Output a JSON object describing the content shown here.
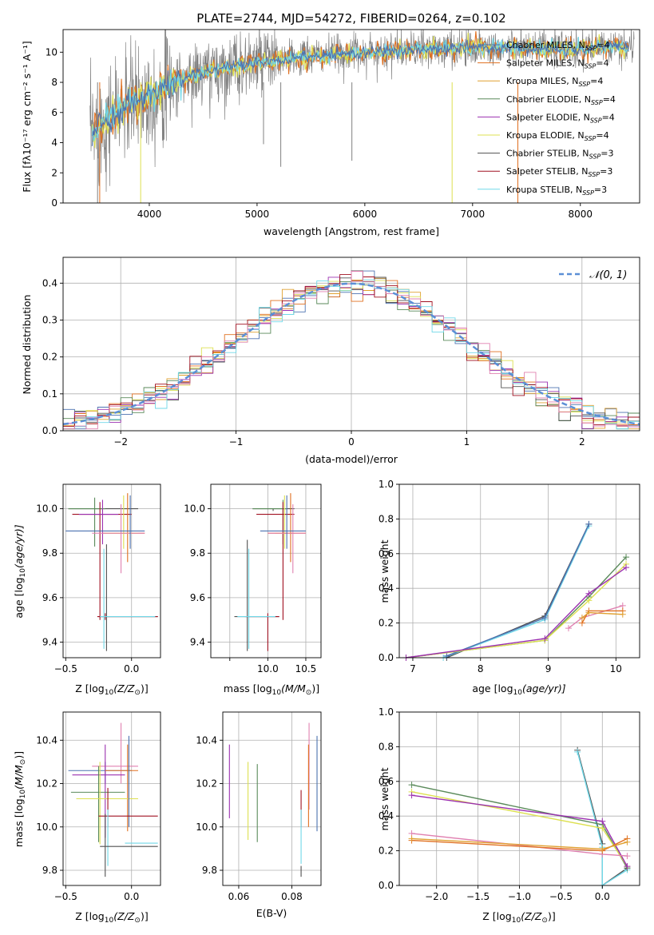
{
  "title": "PLATE=2744, MJD=54272, FIBERID=0264, z=0.102",
  "colors": {
    "chabrier_miles": "#4c72b0",
    "salpeter_miles": "#e07020",
    "kroupa_miles": "#e0a030",
    "chabrier_elodie": "#5a8a5a",
    "salpeter_elodie": "#9b30b0",
    "kroupa_elodie": "#dde050",
    "chabrier_stelib": "#505050",
    "salpeter_stelib": "#a01020",
    "kroupa_stelib": "#70d8e8",
    "pink": "#e080b0",
    "gaussian": "#5b8fd6"
  },
  "legend": [
    {
      "label": "Chabrier MILES, N",
      "sub": "SSP",
      "tail": "=4",
      "color": "#4c72b0"
    },
    {
      "label": "Salpeter MILES, N",
      "sub": "SSP",
      "tail": "=4",
      "color": "#e07020"
    },
    {
      "label": "Kroupa MILES, N",
      "sub": "SSP",
      "tail": "=4",
      "color": "#e0a030"
    },
    {
      "label": "Chabrier ELODIE, N",
      "sub": "SSP",
      "tail": "=4",
      "color": "#5a8a5a"
    },
    {
      "label": "Salpeter ELODIE, N",
      "sub": "SSP",
      "tail": "=4",
      "color": "#9b30b0"
    },
    {
      "label": "Kroupa ELODIE, N",
      "sub": "SSP",
      "tail": "=4",
      "color": "#dde050"
    },
    {
      "label": "Chabrier STELIB, N",
      "sub": "SSP",
      "tail": "=3",
      "color": "#505050"
    },
    {
      "label": "Salpeter STELIB, N",
      "sub": "SSP",
      "tail": "=3",
      "color": "#a01020"
    },
    {
      "label": "Kroupa STELIB, N",
      "sub": "SSP",
      "tail": "=3",
      "color": "#70d8e8"
    }
  ],
  "chart_data": [
    {
      "type": "line",
      "name_hint": "spectrum",
      "xlabel": "wavelength [Angstrom, rest frame]",
      "ylabel_parts": [
        "Flux [f",
        "λ",
        "10",
        "−17",
        " erg cm",
        "−2",
        " s",
        "−1",
        " A",
        "−1",
        "]"
      ],
      "xlim": [
        3200,
        8550
      ],
      "ylim": [
        0,
        11.5
      ],
      "xticks": [
        4000,
        5000,
        6000,
        7000,
        8000
      ],
      "yticks": [
        0,
        2,
        4,
        6,
        8,
        10
      ],
      "continuum": {
        "x": [
          3450,
          3600,
          3800,
          4000,
          4300,
          4600,
          5000,
          5400,
          5800,
          6200,
          6600,
          7000,
          7400,
          7800,
          8200,
          8500
        ],
        "y": [
          4.5,
          5.5,
          6.5,
          7.2,
          8.2,
          8.8,
          9.3,
          9.6,
          9.9,
          10.1,
          10.2,
          10.3,
          10.3,
          10.2,
          10.3,
          10.4
        ]
      }
    },
    {
      "type": "bar",
      "name_hint": "residual histogram",
      "xlabel": "(data-model)/error",
      "ylabel": "Normed distribution",
      "xlim": [
        -2.5,
        2.5
      ],
      "ylim": [
        0,
        0.47
      ],
      "xticks": [
        -2,
        -1,
        0,
        1,
        2
      ],
      "yticks": [
        0.0,
        0.1,
        0.2,
        0.3,
        0.4
      ],
      "bin_width": 0.1,
      "bin_start": -2.5,
      "gaussian_label": "𝒩(0, 1)"
    },
    {
      "type": "scatter",
      "name_hint": "age vs Z",
      "xlabel": "Z [log10(Z/Z⊙)]",
      "ylabel": "age [log10(age/yr)]",
      "xlim": [
        -0.52,
        0.22
      ],
      "ylim": [
        9.33,
        10.11
      ],
      "xticks": [
        -0.5,
        0.0
      ],
      "yticks": [
        9.4,
        9.6,
        9.8,
        10.0
      ]
    },
    {
      "type": "scatter",
      "name_hint": "age vs mass",
      "xlabel": "mass [log10(M/M⊙)]",
      "ylabel": "",
      "xlim": [
        9.7,
        10.6
      ],
      "ylim": [
        9.33,
        10.11
      ],
      "xticks": [
        9.5,
        10.0,
        10.5
      ],
      "yticks": [
        9.4,
        9.6,
        9.8,
        10.0
      ]
    },
    {
      "type": "line",
      "name_hint": "mass weight vs age",
      "xlabel": "age [log10(age/yr)]",
      "ylabel": "mass weight",
      "xlim": [
        6.8,
        10.35
      ],
      "ylim": [
        0,
        1.0
      ],
      "xticks": [
        7,
        8,
        9,
        10
      ],
      "yticks": [
        0.0,
        0.2,
        0.4,
        0.6,
        0.8,
        1.0
      ]
    },
    {
      "type": "scatter",
      "name_hint": "mass vs Z",
      "xlabel": "Z [log10(Z/Z⊙)]",
      "ylabel": "mass [log10(M/M⊙)]",
      "xlim": [
        -0.52,
        0.22
      ],
      "ylim": [
        9.73,
        10.53
      ],
      "xticks": [
        -0.5,
        0.0
      ],
      "yticks": [
        9.8,
        10.0,
        10.2,
        10.4
      ]
    },
    {
      "type": "scatter",
      "name_hint": "mass vs E(B-V)",
      "xlabel": "E(B-V)",
      "ylabel": "",
      "xlim": [
        0.054,
        0.091
      ],
      "ylim": [
        9.73,
        10.53
      ],
      "xticks": [
        0.06,
        0.08
      ],
      "yticks": [
        9.8,
        10.0,
        10.2,
        10.4
      ]
    },
    {
      "type": "line",
      "name_hint": "mass weight vs Z",
      "xlabel": "Z [log10(Z/Z⊙)]",
      "ylabel": "mass weight",
      "xlim": [
        -2.45,
        0.45
      ],
      "ylim": [
        0,
        1.0
      ],
      "xticks": [
        -2.0,
        -1.5,
        -1.0,
        -0.5,
        0.0
      ],
      "yticks": [
        0.0,
        0.2,
        0.4,
        0.6,
        0.8,
        1.0
      ]
    }
  ],
  "tick_text": {
    "p1x": [
      "4000",
      "5000",
      "6000",
      "7000",
      "8000"
    ],
    "p1y": [
      "0",
      "2",
      "4",
      "6",
      "8",
      "10"
    ],
    "p2x": [
      "−2",
      "−1",
      "0",
      "1",
      "2"
    ],
    "p2y": [
      "0.0",
      "0.1",
      "0.2",
      "0.3",
      "0.4"
    ],
    "p3x": [
      "−0.5",
      "0.0"
    ],
    "p3y": [
      "9.4",
      "9.6",
      "9.8",
      "10.0"
    ],
    "p4x": [
      "10.0",
      "10.5"
    ],
    "p4y": [
      "9.4",
      "9.6",
      "9.8",
      "10.0"
    ],
    "p5x": [
      "7",
      "8",
      "9",
      "10"
    ],
    "p5y": [
      "0.0",
      "0.2",
      "0.4",
      "0.6",
      "0.8",
      "1.0"
    ],
    "p6x": [
      "−0.5",
      "0.0"
    ],
    "p6y": [
      "9.8",
      "10.0",
      "10.2",
      "10.4"
    ],
    "p7x": [
      "0.06",
      "0.08"
    ],
    "p7y": [
      "9.8",
      "10.0",
      "10.2",
      "10.4"
    ],
    "p8x": [
      "−2.0",
      "−1.5",
      "−1.0",
      "−0.5",
      "0.0"
    ],
    "p8y": [
      "0.0",
      "0.2",
      "0.4",
      "0.6",
      "0.8",
      "1.0"
    ]
  },
  "labels": {
    "wavelength": "wavelength [Angstrom, rest frame]",
    "resid": "(data-model)/error",
    "normed": "Normed distribution",
    "mass_weight": "mass weight",
    "ebv": "E(B-V)",
    "z_prefix": "Z [log",
    "z_sub": "10",
    "z_mid": "(Z/Z",
    "z_sun": "⊙",
    "z_end": ")]",
    "mass_prefix": "mass [log",
    "mass_mid": "(M/M",
    "age_prefix": "age  [log",
    "age_mid": "(age/yr)]",
    "flux_label": "Flux [fλ10⁻¹⁷ erg cm⁻² s⁻¹ A⁻¹]"
  }
}
